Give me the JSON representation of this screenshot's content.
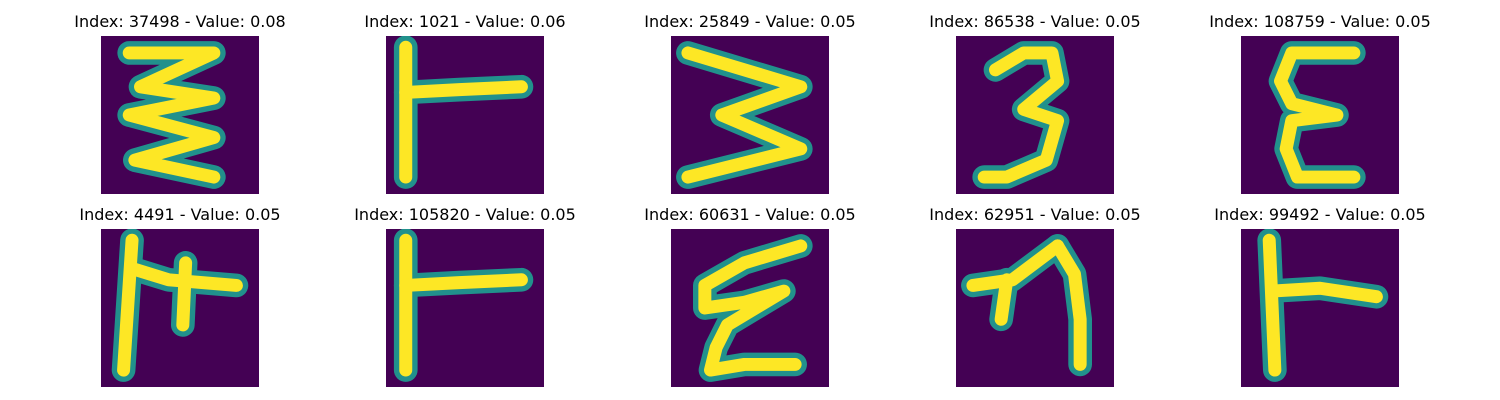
{
  "colormap": {
    "background": "#440154",
    "edge": "#21918c",
    "stroke": "#fde725"
  },
  "panels": [
    {
      "title": "Index: 37498 - Value: 0.08",
      "glyph": "zigzag-three-peaks"
    },
    {
      "title": "Index: 1021 - Value: 0.06",
      "glyph": "vertical-with-right-arm"
    },
    {
      "title": "Index: 25849 - Value: 0.05",
      "glyph": "rotated-w"
    },
    {
      "title": "Index: 86538 - Value: 0.05",
      "glyph": "three"
    },
    {
      "title": "Index: 108759 - Value: 0.05",
      "glyph": "epsilon"
    },
    {
      "title": "Index: 4491 - Value: 0.05",
      "glyph": "vertical-with-cross"
    },
    {
      "title": "Index: 105820 - Value: 0.05",
      "glyph": "vertical-with-right-arm"
    },
    {
      "title": "Index: 60631 - Value: 0.05",
      "glyph": "zigzag-two"
    },
    {
      "title": "Index: 62951 - Value: 0.05",
      "glyph": "arrow-curve"
    },
    {
      "title": "Index: 99492 - Value: 0.05",
      "glyph": "vertical-with-right-arm-low"
    }
  ]
}
